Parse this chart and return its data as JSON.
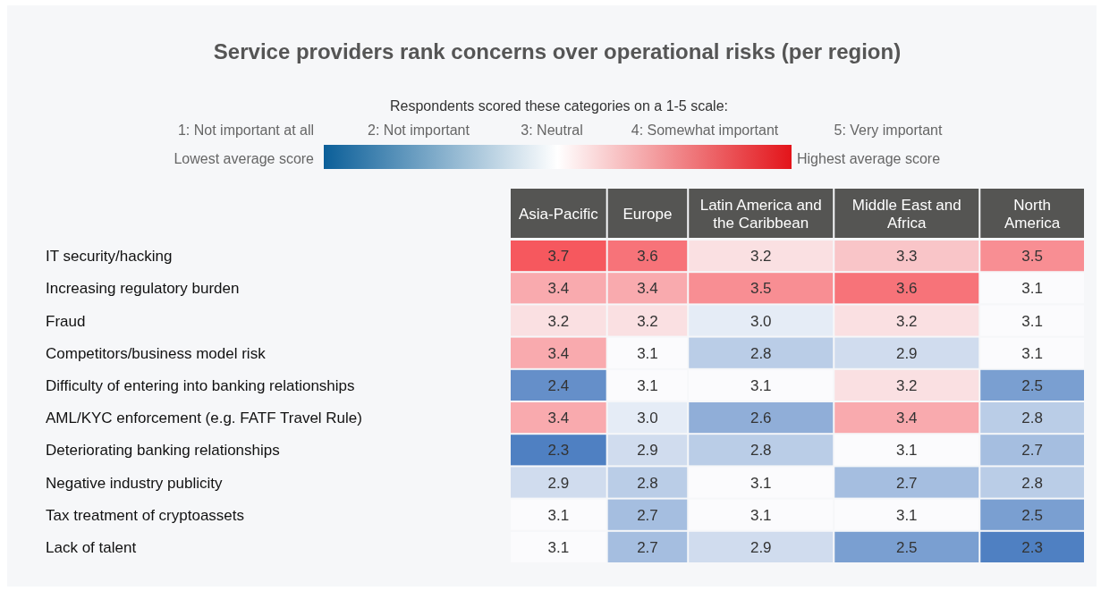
{
  "chart_data": {
    "type": "heatmap",
    "title": "Service providers rank concerns over operational risks (per region)",
    "subtitle": "Respondents scored these categories on a 1-5 scale:",
    "annotations": [
      "1: Not important at all",
      "2: Not important",
      "3: Neutral",
      "4: Somewhat important",
      "5: Very important",
      "Lowest average score",
      "Highest average score"
    ],
    "categories": [
      "Asia-Pacific",
      "Europe",
      "Latin America and the Caribbean",
      "Middle East and Africa",
      "North America"
    ],
    "y_categories": [
      "IT security/hacking",
      "Increasing regulatory burden",
      "Fraud",
      "Competitors/business model risk",
      "Difficulty of entering into banking relationships",
      "AML/KYC enforcement (e.g. FATF Travel Rule)",
      "Deteriorating banking relationships",
      "Negative industry publicity",
      "Tax treatment of cryptoassets",
      "Lack of talent"
    ],
    "cells": [
      [
        3.7,
        3.6,
        3.2,
        3.3,
        3.5
      ],
      [
        3.4,
        3.4,
        3.5,
        3.6,
        3.1
      ],
      [
        3.2,
        3.2,
        3.0,
        3.2,
        3.1
      ],
      [
        3.4,
        3.1,
        2.8,
        2.9,
        3.1
      ],
      [
        2.4,
        3.1,
        3.1,
        3.2,
        2.5
      ],
      [
        3.4,
        3.0,
        2.6,
        3.4,
        2.8
      ],
      [
        2.3,
        2.9,
        2.8,
        3.1,
        2.7
      ],
      [
        2.9,
        2.8,
        3.1,
        2.7,
        2.8
      ],
      [
        3.1,
        2.7,
        3.1,
        3.1,
        2.5
      ],
      [
        3.1,
        2.7,
        2.9,
        2.5,
        2.3
      ]
    ],
    "cell_labels": [
      [
        "3.7",
        "3.6",
        "3.2",
        "3.3",
        "3.5"
      ],
      [
        "3.4",
        "3.4",
        "3.5",
        "3.6",
        "3.1"
      ],
      [
        "3.2",
        "3.2",
        "3.0",
        "3.2",
        "3.1"
      ],
      [
        "3.4",
        "3.1",
        "2.8",
        "2.9",
        "3.1"
      ],
      [
        "2.4",
        "3.1",
        "3.1",
        "3.2",
        "2.5"
      ],
      [
        "3.4",
        "3.0",
        "2.6",
        "3.4",
        "2.8"
      ],
      [
        "2.3",
        "2.9",
        "2.8",
        "3.1",
        "2.7"
      ],
      [
        "2.9",
        "2.8",
        "3.1",
        "2.7",
        "2.8"
      ],
      [
        "3.1",
        "2.7",
        "3.1",
        "3.1",
        "2.5"
      ],
      [
        "3.1",
        "2.7",
        "2.9",
        "2.5",
        "2.3"
      ]
    ]
  }
}
